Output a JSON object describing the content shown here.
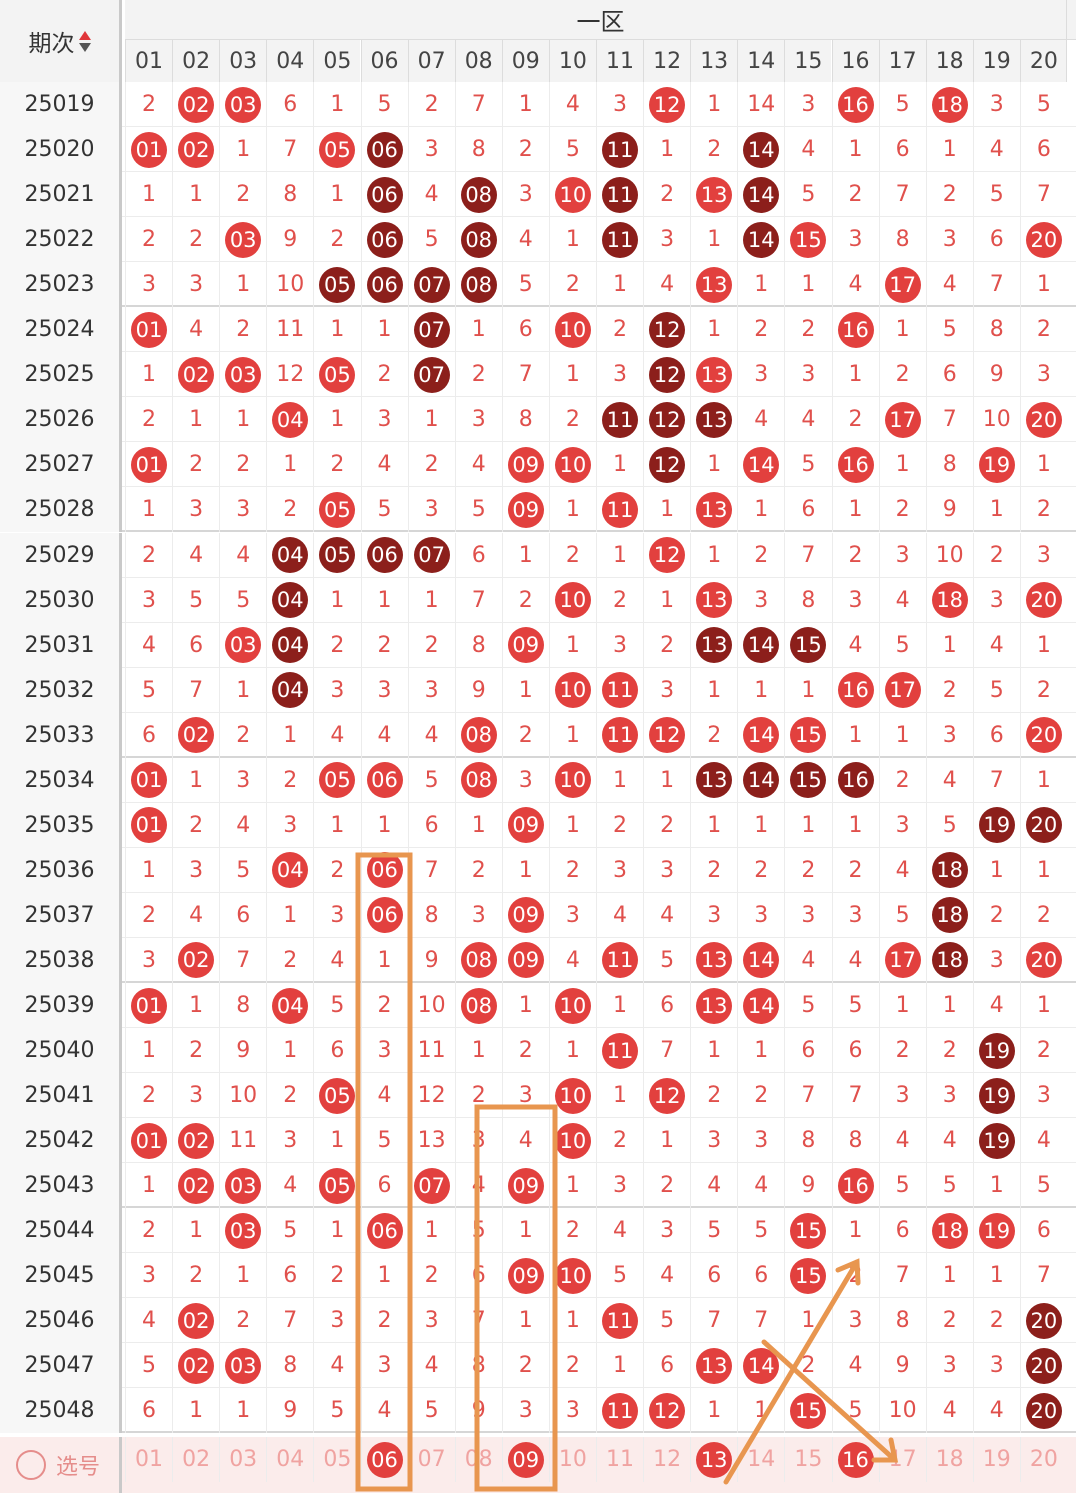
{
  "header": {
    "period_label": "期次",
    "zone_title": "一区",
    "columns": [
      "01",
      "02",
      "03",
      "04",
      "05",
      "06",
      "07",
      "08",
      "09",
      "10",
      "11",
      "12",
      "13",
      "14",
      "15",
      "16",
      "17",
      "18",
      "19",
      "20"
    ]
  },
  "rows": [
    {
      "period": "25019",
      "cells": [
        "2",
        "02",
        "03",
        "6",
        "1",
        "5",
        "2",
        "7",
        "1",
        "4",
        "3",
        "12",
        "1",
        "14",
        "3",
        "16",
        "5",
        "18",
        "3",
        "5"
      ],
      "balls": {
        "02": "red",
        "03": "red",
        "12": "red",
        "16": "red",
        "18": "red"
      }
    },
    {
      "period": "25020",
      "cells": [
        "01",
        "02",
        "1",
        "7",
        "05",
        "06",
        "3",
        "8",
        "2",
        "5",
        "11",
        "1",
        "2",
        "14",
        "4",
        "1",
        "6",
        "1",
        "4",
        "6"
      ],
      "balls": {
        "01": "red",
        "02": "red",
        "05": "red",
        "06": "dark",
        "11": "dark",
        "14": "dark"
      }
    },
    {
      "period": "25021",
      "cells": [
        "1",
        "1",
        "2",
        "8",
        "1",
        "06",
        "4",
        "08",
        "3",
        "10",
        "11",
        "2",
        "13",
        "14",
        "5",
        "2",
        "7",
        "2",
        "5",
        "7"
      ],
      "balls": {
        "06": "dark",
        "08": "dark",
        "10": "red",
        "11": "dark",
        "13": "red",
        "14": "dark"
      }
    },
    {
      "period": "25022",
      "cells": [
        "2",
        "2",
        "03",
        "9",
        "2",
        "06",
        "5",
        "08",
        "4",
        "1",
        "11",
        "3",
        "1",
        "14",
        "15",
        "3",
        "8",
        "3",
        "6",
        "20"
      ],
      "balls": {
        "03": "red",
        "06": "dark",
        "08": "dark",
        "11": "dark",
        "14": "dark",
        "15": "red",
        "20": "red"
      }
    },
    {
      "period": "25023",
      "cells": [
        "3",
        "3",
        "1",
        "10",
        "05",
        "06",
        "07",
        "08",
        "5",
        "2",
        "1",
        "4",
        "13",
        "1",
        "1",
        "4",
        "17",
        "4",
        "7",
        "1"
      ],
      "balls": {
        "05": "dark",
        "06": "dark",
        "07": "dark",
        "08": "dark",
        "13": "red",
        "17": "red"
      }
    },
    {
      "period": "25024",
      "cells": [
        "01",
        "4",
        "2",
        "11",
        "1",
        "1",
        "07",
        "1",
        "6",
        "10",
        "2",
        "12",
        "1",
        "2",
        "2",
        "16",
        "1",
        "5",
        "8",
        "2"
      ],
      "balls": {
        "01": "red",
        "07": "dark",
        "10": "red",
        "12": "dark",
        "16": "red"
      }
    },
    {
      "period": "25025",
      "cells": [
        "1",
        "02",
        "03",
        "12",
        "05",
        "2",
        "07",
        "2",
        "7",
        "1",
        "3",
        "12",
        "13",
        "3",
        "3",
        "1",
        "2",
        "6",
        "9",
        "3"
      ],
      "balls": {
        "02": "red",
        "03": "red",
        "05": "red",
        "07": "dark",
        "12": "dark",
        "13": "red"
      }
    },
    {
      "period": "25026",
      "cells": [
        "2",
        "1",
        "1",
        "04",
        "1",
        "3",
        "1",
        "3",
        "8",
        "2",
        "11",
        "12",
        "13",
        "4",
        "4",
        "2",
        "17",
        "7",
        "10",
        "20"
      ],
      "balls": {
        "04": "red",
        "11": "dark",
        "12": "dark",
        "13": "dark",
        "17": "red",
        "20": "red"
      }
    },
    {
      "period": "25027",
      "cells": [
        "01",
        "2",
        "2",
        "1",
        "2",
        "4",
        "2",
        "4",
        "09",
        "10",
        "1",
        "12",
        "1",
        "14",
        "5",
        "16",
        "1",
        "8",
        "19",
        "1"
      ],
      "balls": {
        "01": "red",
        "09": "red",
        "10": "red",
        "12": "dark",
        "14": "red",
        "16": "red",
        "19": "red"
      }
    },
    {
      "period": "25028",
      "cells": [
        "1",
        "3",
        "3",
        "2",
        "05",
        "5",
        "3",
        "5",
        "09",
        "1",
        "11",
        "1",
        "13",
        "1",
        "6",
        "1",
        "2",
        "9",
        "1",
        "2"
      ],
      "balls": {
        "05": "red",
        "09": "red",
        "11": "red",
        "13": "red"
      }
    },
    {
      "period": "25029",
      "cells": [
        "2",
        "4",
        "4",
        "04",
        "05",
        "06",
        "07",
        "6",
        "1",
        "2",
        "1",
        "12",
        "1",
        "2",
        "7",
        "2",
        "3",
        "10",
        "2",
        "3"
      ],
      "balls": {
        "04": "dark",
        "05": "dark",
        "06": "dark",
        "07": "dark",
        "12": "red"
      }
    },
    {
      "period": "25030",
      "cells": [
        "3",
        "5",
        "5",
        "04",
        "1",
        "1",
        "1",
        "7",
        "2",
        "10",
        "2",
        "1",
        "13",
        "3",
        "8",
        "3",
        "4",
        "18",
        "3",
        "20"
      ],
      "balls": {
        "04": "dark",
        "10": "red",
        "13": "red",
        "18": "red",
        "20": "red"
      }
    },
    {
      "period": "25031",
      "cells": [
        "4",
        "6",
        "03",
        "04",
        "2",
        "2",
        "2",
        "8",
        "09",
        "1",
        "3",
        "2",
        "13",
        "14",
        "15",
        "4",
        "5",
        "1",
        "4",
        "1"
      ],
      "balls": {
        "03": "red",
        "04": "dark",
        "09": "red",
        "13": "dark",
        "14": "dark",
        "15": "dark"
      }
    },
    {
      "period": "25032",
      "cells": [
        "5",
        "7",
        "1",
        "04",
        "3",
        "3",
        "3",
        "9",
        "1",
        "10",
        "11",
        "3",
        "1",
        "1",
        "1",
        "16",
        "17",
        "2",
        "5",
        "2"
      ],
      "balls": {
        "04": "dark",
        "10": "red",
        "11": "red",
        "16": "red",
        "17": "red"
      }
    },
    {
      "period": "25033",
      "cells": [
        "6",
        "02",
        "2",
        "1",
        "4",
        "4",
        "4",
        "08",
        "2",
        "1",
        "11",
        "12",
        "2",
        "14",
        "15",
        "1",
        "1",
        "3",
        "6",
        "20"
      ],
      "balls": {
        "02": "red",
        "08": "red",
        "11": "red",
        "12": "red",
        "14": "red",
        "15": "red",
        "20": "red"
      }
    },
    {
      "period": "25034",
      "cells": [
        "01",
        "1",
        "3",
        "2",
        "05",
        "06",
        "5",
        "08",
        "3",
        "10",
        "1",
        "1",
        "13",
        "14",
        "15",
        "16",
        "2",
        "4",
        "7",
        "1"
      ],
      "balls": {
        "01": "red",
        "05": "red",
        "06": "red",
        "08": "red",
        "10": "red",
        "13": "dark",
        "14": "dark",
        "15": "dark",
        "16": "dark"
      }
    },
    {
      "period": "25035",
      "cells": [
        "01",
        "2",
        "4",
        "3",
        "1",
        "1",
        "6",
        "1",
        "09",
        "1",
        "2",
        "2",
        "1",
        "1",
        "1",
        "1",
        "3",
        "5",
        "19",
        "20"
      ],
      "balls": {
        "01": "red",
        "09": "red",
        "19": "dark",
        "20": "dark"
      }
    },
    {
      "period": "25036",
      "cells": [
        "1",
        "3",
        "5",
        "04",
        "2",
        "06",
        "7",
        "2",
        "1",
        "2",
        "3",
        "3",
        "2",
        "2",
        "2",
        "2",
        "4",
        "18",
        "1",
        "1"
      ],
      "balls": {
        "04": "red",
        "06": "red",
        "18": "dark"
      }
    },
    {
      "period": "25037",
      "cells": [
        "2",
        "4",
        "6",
        "1",
        "3",
        "06",
        "8",
        "3",
        "09",
        "3",
        "4",
        "4",
        "3",
        "3",
        "3",
        "3",
        "5",
        "18",
        "2",
        "2"
      ],
      "balls": {
        "06": "red",
        "09": "red",
        "18": "dark"
      }
    },
    {
      "period": "25038",
      "cells": [
        "3",
        "02",
        "7",
        "2",
        "4",
        "1",
        "9",
        "08",
        "09",
        "4",
        "11",
        "5",
        "13",
        "14",
        "4",
        "4",
        "17",
        "18",
        "3",
        "20"
      ],
      "balls": {
        "02": "red",
        "08": "red",
        "09": "red",
        "11": "red",
        "13": "red",
        "14": "red",
        "17": "red",
        "18": "dark",
        "20": "red"
      }
    },
    {
      "period": "25039",
      "cells": [
        "01",
        "1",
        "8",
        "04",
        "5",
        "2",
        "10",
        "08",
        "1",
        "10",
        "1",
        "6",
        "13",
        "14",
        "5",
        "5",
        "1",
        "1",
        "4",
        "1"
      ],
      "balls": {
        "01": "red",
        "04": "red",
        "08": "red",
        "10": "red",
        "13": "red",
        "14": "red"
      }
    },
    {
      "period": "25040",
      "cells": [
        "1",
        "2",
        "9",
        "1",
        "6",
        "3",
        "11",
        "1",
        "2",
        "1",
        "11",
        "7",
        "1",
        "1",
        "6",
        "6",
        "2",
        "2",
        "19",
        "2"
      ],
      "balls": {
        "11": "red",
        "19": "dark"
      }
    },
    {
      "period": "25041",
      "cells": [
        "2",
        "3",
        "10",
        "2",
        "05",
        "4",
        "12",
        "2",
        "3",
        "10",
        "1",
        "12",
        "2",
        "2",
        "7",
        "7",
        "3",
        "3",
        "19",
        "3"
      ],
      "balls": {
        "05": "red",
        "10": "red",
        "12": "red",
        "19": "dark"
      }
    },
    {
      "period": "25042",
      "cells": [
        "01",
        "02",
        "11",
        "3",
        "1",
        "5",
        "13",
        "3",
        "4",
        "10",
        "2",
        "1",
        "3",
        "3",
        "8",
        "8",
        "4",
        "4",
        "19",
        "4"
      ],
      "balls": {
        "01": "red",
        "02": "red",
        "10": "red",
        "19": "dark"
      }
    },
    {
      "period": "25043",
      "cells": [
        "1",
        "02",
        "03",
        "4",
        "05",
        "6",
        "07",
        "4",
        "09",
        "1",
        "3",
        "2",
        "4",
        "4",
        "9",
        "16",
        "5",
        "5",
        "1",
        "5"
      ],
      "balls": {
        "02": "red",
        "03": "red",
        "05": "red",
        "07": "red",
        "09": "red",
        "16": "red"
      }
    },
    {
      "period": "25044",
      "cells": [
        "2",
        "1",
        "03",
        "5",
        "1",
        "06",
        "1",
        "5",
        "1",
        "2",
        "4",
        "3",
        "5",
        "5",
        "15",
        "1",
        "6",
        "18",
        "19",
        "6"
      ],
      "balls": {
        "03": "red",
        "06": "red",
        "15": "red",
        "18": "red",
        "19": "red"
      }
    },
    {
      "period": "25045",
      "cells": [
        "3",
        "2",
        "1",
        "6",
        "2",
        "1",
        "2",
        "6",
        "09",
        "10",
        "5",
        "4",
        "6",
        "6",
        "15",
        "2",
        "7",
        "1",
        "1",
        "7"
      ],
      "balls": {
        "09": "red",
        "10": "red",
        "15": "red"
      }
    },
    {
      "period": "25046",
      "cells": [
        "4",
        "02",
        "2",
        "7",
        "3",
        "2",
        "3",
        "7",
        "1",
        "1",
        "11",
        "5",
        "7",
        "7",
        "1",
        "3",
        "8",
        "2",
        "2",
        "20"
      ],
      "balls": {
        "02": "red",
        "11": "red",
        "20": "dark"
      }
    },
    {
      "period": "25047",
      "cells": [
        "5",
        "02",
        "03",
        "8",
        "4",
        "3",
        "4",
        "8",
        "2",
        "2",
        "1",
        "6",
        "13",
        "14",
        "2",
        "4",
        "9",
        "3",
        "3",
        "20"
      ],
      "balls": {
        "02": "red",
        "03": "red",
        "13": "red",
        "14": "red",
        "20": "dark"
      }
    },
    {
      "period": "25048",
      "cells": [
        "6",
        "1",
        "1",
        "9",
        "5",
        "4",
        "5",
        "9",
        "3",
        "3",
        "11",
        "12",
        "1",
        "1",
        "15",
        "5",
        "10",
        "4",
        "4",
        "20"
      ],
      "balls": {
        "11": "red",
        "12": "red",
        "15": "red",
        "20": "dark"
      }
    }
  ],
  "select_row": {
    "label": "选号",
    "cells": [
      "01",
      "02",
      "03",
      "04",
      "05",
      "06",
      "07",
      "08",
      "09",
      "10",
      "11",
      "12",
      "13",
      "14",
      "15",
      "16",
      "17",
      "18",
      "19",
      "20"
    ],
    "selected": [
      "06",
      "09",
      "13",
      "16"
    ]
  },
  "colors": {
    "ball_red": "#e2403e",
    "ball_dark": "#8c1f1b",
    "number_text": "#e0504c",
    "annotation": "#e8964f",
    "select_row_bg": "#fbeceb"
  },
  "annotations": {
    "boxes": [
      "column-06-box",
      "column-09-box"
    ],
    "arrows": [
      "arrow-up-right-to-16",
      "arrow-down-right-to-17"
    ]
  }
}
